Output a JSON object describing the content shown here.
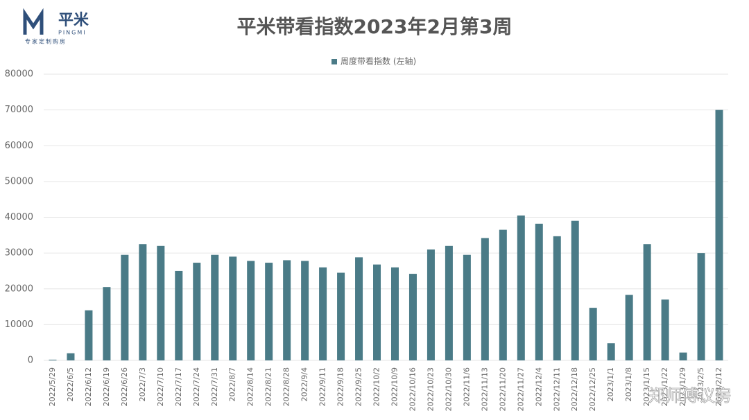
{
  "logo": {
    "name": "平米",
    "latin": "PINGMI",
    "slogan": "专家定制购房"
  },
  "watermark": "郑师傅议房",
  "chart_data": {
    "type": "bar",
    "title": "平米带看指数2023年2月第3周",
    "categories": [
      "2022/5/29",
      "2022/6/5",
      "2022/6/12",
      "2022/6/19",
      "2022/6/26",
      "2022/7/3",
      "2022/7/10",
      "2022/7/17",
      "2022/7/24",
      "2022/7/31",
      "2022/8/7",
      "2022/8/14",
      "2022/8/21",
      "2022/8/28",
      "2022/9/4",
      "2022/9/11",
      "2022/9/18",
      "2022/9/25",
      "2022/10/2",
      "2022/10/9",
      "2022/10/16",
      "2022/10/23",
      "2022/10/30",
      "2022/11/6",
      "2022/11/13",
      "2022/11/20",
      "2022/11/27",
      "2022/12/4",
      "2022/12/11",
      "2022/12/18",
      "2022/12/25",
      "2023/1/1",
      "2023/1/8",
      "2023/1/15",
      "2023/1/22",
      "2023/1/29",
      "2023/2/5",
      "2023/2/12"
    ],
    "series": [
      {
        "name": "周度带看指数 (左轴)",
        "color": "#4a7b87",
        "values": [
          200,
          2000,
          14000,
          20500,
          29500,
          32500,
          32000,
          25000,
          27300,
          29500,
          29000,
          27800,
          27300,
          28000,
          27800,
          26000,
          24500,
          28800,
          26800,
          26000,
          24200,
          31000,
          32000,
          29500,
          34200,
          36500,
          40500,
          38200,
          34700,
          39000,
          14700,
          4800,
          18300,
          32500,
          17000,
          2200,
          30000,
          70000
        ]
      }
    ],
    "ylim": [
      0,
      80000
    ],
    "yticks": [
      0,
      10000,
      20000,
      30000,
      40000,
      50000,
      60000,
      70000,
      80000
    ],
    "grid": true
  }
}
